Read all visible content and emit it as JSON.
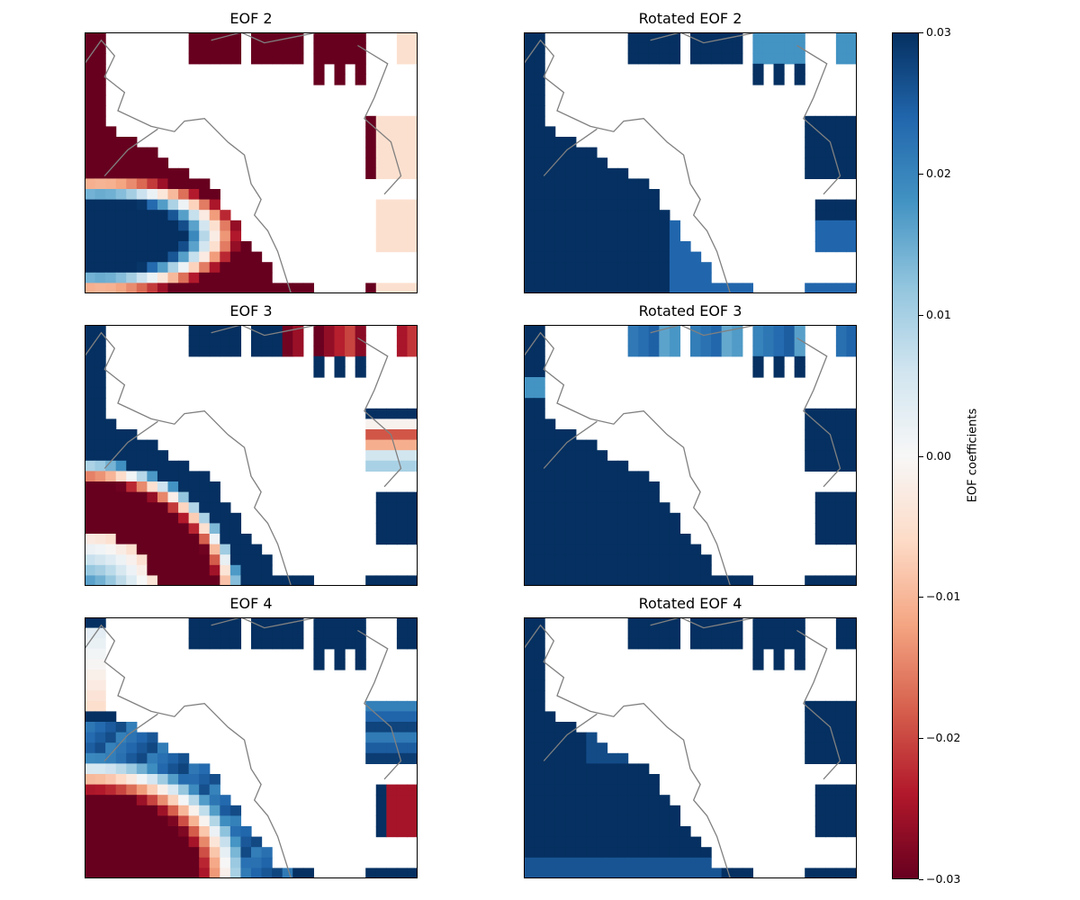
{
  "chart_data": {
    "type": "heatmap",
    "layout": "3 rows x 2 columns of map panels",
    "colormap": "RdBu (red = negative, blue = positive)",
    "land_mask_color": "#ffffff",
    "coastline_color": "#808080",
    "panels": [
      {
        "title": "EOF 2",
        "pattern": "eof2"
      },
      {
        "title": "Rotated EOF 2",
        "pattern": "rot2"
      },
      {
        "title": "EOF 3",
        "pattern": "eof3"
      },
      {
        "title": "Rotated EOF 3",
        "pattern": "rot3"
      },
      {
        "title": "EOF 4",
        "pattern": "eof4"
      },
      {
        "title": "Rotated EOF 4",
        "pattern": "rot4"
      }
    ],
    "colorbar": {
      "label": "EOF coefficients",
      "vmin": -0.03,
      "vmax": 0.03,
      "ticks": [
        0.03,
        0.02,
        0.01,
        0.0,
        -0.01,
        -0.02,
        -0.03
      ],
      "tick_labels": [
        "0.03",
        "0.02",
        "0.01",
        "0.00",
        "−0.01",
        "−0.02",
        "−0.03"
      ]
    }
  }
}
